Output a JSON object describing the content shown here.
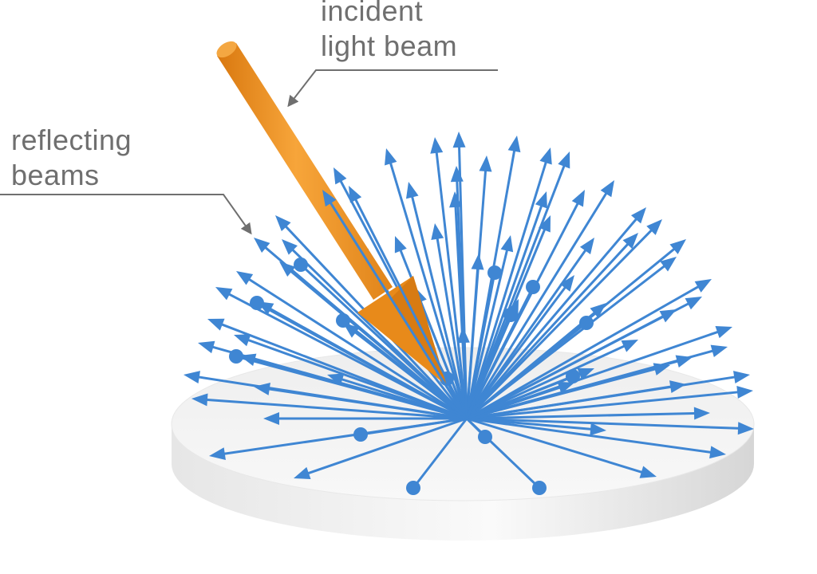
{
  "labels": {
    "incident": {
      "line1": "incident",
      "line2": "light beam"
    },
    "reflecting": {
      "line1": "reflecting",
      "line2": "beams"
    }
  },
  "colors": {
    "ray": "#3f86d3",
    "ray_dark": "#2a6fbf",
    "incident_beam": "#f0961e",
    "incident_shadow": "#c9700f",
    "disk_top": "#f4f4f4",
    "disk_side": "#e2e2e2",
    "leader": "#6f6f6f"
  },
  "icons": {
    "incident_beam": "cylinder-arrow",
    "reflected_ray": "cone-arrow",
    "surface": "disk"
  }
}
